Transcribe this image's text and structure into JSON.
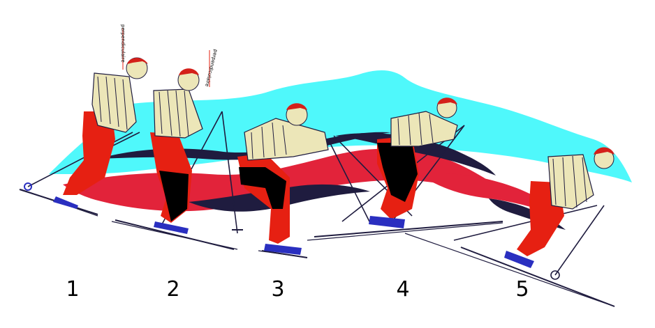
{
  "diagram": {
    "steps": [
      {
        "number": "1"
      },
      {
        "number": "2"
      },
      {
        "number": "3"
      },
      {
        "number": "4"
      },
      {
        "number": "5"
      }
    ],
    "annotations": {
      "perpendicular_1": "perpendiculaire",
      "perpendicular_2": "perpendiculaire"
    }
  },
  "colors": {
    "sky_cyan": "#4ff8fb",
    "snow_red": "#e2233a",
    "navy": "#1f1c3f",
    "trousers_red": "#e62012",
    "boots_blue": "#2a2fc0",
    "sweater_cream": "#ece6b8",
    "hair_red": "#d4201a"
  }
}
